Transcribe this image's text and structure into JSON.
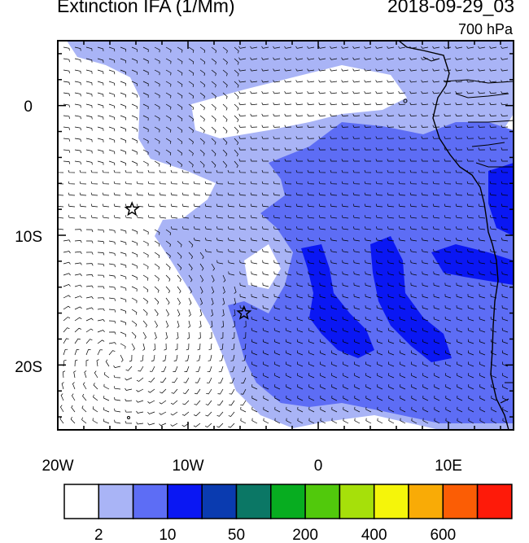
{
  "title": "Extinction IFA (1/Mm)",
  "datetime": "2018-09-29_03",
  "level": "700 hPa",
  "axes": {
    "lon_labels": [
      "20W",
      "10W",
      "0",
      "10E"
    ],
    "lat_labels": [
      "0",
      "10S",
      "20S"
    ]
  },
  "colorbar": {
    "colors": [
      "#ffffff",
      "#a9b4f6",
      "#5d6df5",
      "#0a17f3",
      "#0a3bb0",
      "#0b7765",
      "#07ad20",
      "#51c90c",
      "#a6e00a",
      "#f5f50a",
      "#f9ab06",
      "#fb5d05",
      "#fe1a09"
    ],
    "labels": [
      {
        "text": "2",
        "index": 1
      },
      {
        "text": "10",
        "index": 3
      },
      {
        "text": "50",
        "index": 5
      },
      {
        "text": "200",
        "index": 7
      },
      {
        "text": "400",
        "index": 9
      },
      {
        "text": "600",
        "index": 11
      }
    ]
  },
  "markers": [
    {
      "name": "star-marker-1",
      "lon": -14.3,
      "lat": -8.0
    },
    {
      "name": "star-marker-2",
      "lon": -5.7,
      "lat": -16.0
    }
  ]
}
